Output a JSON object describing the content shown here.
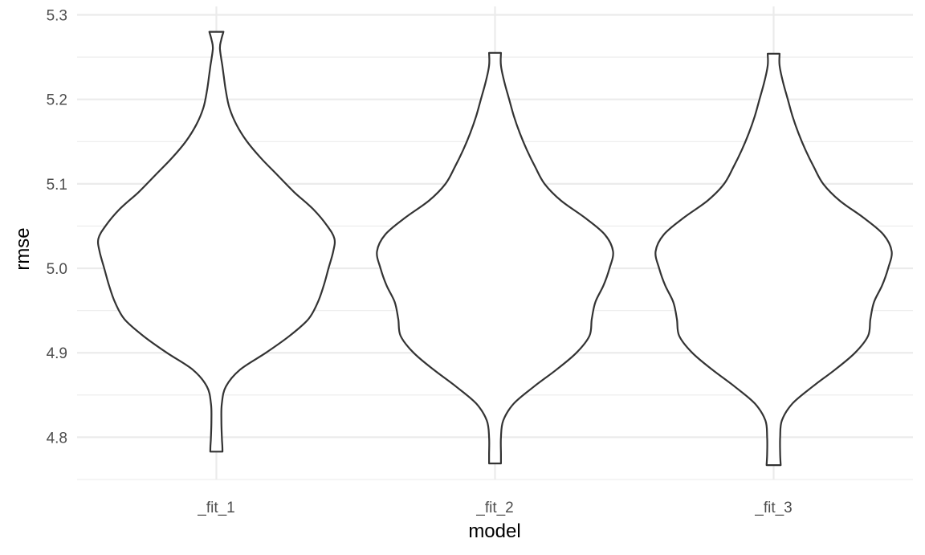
{
  "chart_data": {
    "type": "violin",
    "title": "",
    "xlabel": "model",
    "ylabel": "rmse",
    "ylim": [
      4.75,
      5.31
    ],
    "y_ticks": [
      "4.8",
      "4.9",
      "5.0",
      "5.1",
      "5.2",
      "5.3"
    ],
    "grid": true,
    "categories": [
      "_fit_1",
      "_fit_2",
      "_fit_3"
    ],
    "series": [
      {
        "category": "_fit_1",
        "min": 4.783,
        "max": 5.28,
        "profile": [
          [
            4.783,
            0.052
          ],
          [
            4.79,
            0.05
          ],
          [
            4.8,
            0.046
          ],
          [
            4.82,
            0.042
          ],
          [
            4.84,
            0.046
          ],
          [
            4.86,
            0.08
          ],
          [
            4.88,
            0.2
          ],
          [
            4.9,
            0.42
          ],
          [
            4.92,
            0.62
          ],
          [
            4.94,
            0.78
          ],
          [
            4.96,
            0.86
          ],
          [
            4.98,
            0.91
          ],
          [
            5.0,
            0.95
          ],
          [
            5.02,
            0.99
          ],
          [
            5.035,
            1.0
          ],
          [
            5.05,
            0.94
          ],
          [
            5.07,
            0.82
          ],
          [
            5.09,
            0.66
          ],
          [
            5.11,
            0.52
          ],
          [
            5.13,
            0.38
          ],
          [
            5.15,
            0.26
          ],
          [
            5.17,
            0.17
          ],
          [
            5.19,
            0.11
          ],
          [
            5.21,
            0.08
          ],
          [
            5.23,
            0.06
          ],
          [
            5.24,
            0.05
          ],
          [
            5.26,
            0.03
          ],
          [
            5.27,
            0.04
          ],
          [
            5.28,
            0.06
          ]
        ]
      },
      {
        "category": "_fit_2",
        "min": 4.769,
        "max": 5.255,
        "profile": [
          [
            4.769,
            0.05
          ],
          [
            4.78,
            0.05
          ],
          [
            4.8,
            0.05
          ],
          [
            4.82,
            0.07
          ],
          [
            4.84,
            0.16
          ],
          [
            4.86,
            0.33
          ],
          [
            4.88,
            0.52
          ],
          [
            4.9,
            0.69
          ],
          [
            4.92,
            0.8
          ],
          [
            4.94,
            0.82
          ],
          [
            4.96,
            0.85
          ],
          [
            4.98,
            0.92
          ],
          [
            5.0,
            0.97
          ],
          [
            5.02,
            1.0
          ],
          [
            5.04,
            0.93
          ],
          [
            5.06,
            0.76
          ],
          [
            5.08,
            0.56
          ],
          [
            5.1,
            0.42
          ],
          [
            5.12,
            0.34
          ],
          [
            5.14,
            0.27
          ],
          [
            5.16,
            0.21
          ],
          [
            5.18,
            0.16
          ],
          [
            5.2,
            0.12
          ],
          [
            5.22,
            0.08
          ],
          [
            5.24,
            0.05
          ],
          [
            5.255,
            0.05
          ]
        ]
      },
      {
        "category": "_fit_3",
        "min": 4.767,
        "max": 5.254,
        "profile": [
          [
            4.767,
            0.06
          ],
          [
            4.78,
            0.055
          ],
          [
            4.8,
            0.055
          ],
          [
            4.82,
            0.07
          ],
          [
            4.84,
            0.16
          ],
          [
            4.86,
            0.33
          ],
          [
            4.88,
            0.52
          ],
          [
            4.9,
            0.69
          ],
          [
            4.92,
            0.8
          ],
          [
            4.94,
            0.82
          ],
          [
            4.96,
            0.85
          ],
          [
            4.98,
            0.92
          ],
          [
            5.0,
            0.97
          ],
          [
            5.02,
            1.0
          ],
          [
            5.04,
            0.93
          ],
          [
            5.06,
            0.76
          ],
          [
            5.08,
            0.56
          ],
          [
            5.1,
            0.42
          ],
          [
            5.12,
            0.34
          ],
          [
            5.14,
            0.27
          ],
          [
            5.16,
            0.21
          ],
          [
            5.18,
            0.16
          ],
          [
            5.2,
            0.12
          ],
          [
            5.22,
            0.08
          ],
          [
            5.24,
            0.05
          ],
          [
            5.254,
            0.05
          ]
        ]
      }
    ],
    "colors": {
      "outline": "#333333",
      "fill": "#ffffff",
      "grid": "#ebebeb",
      "tick_text": "#4d4d4d",
      "title_text": "#000000"
    }
  }
}
